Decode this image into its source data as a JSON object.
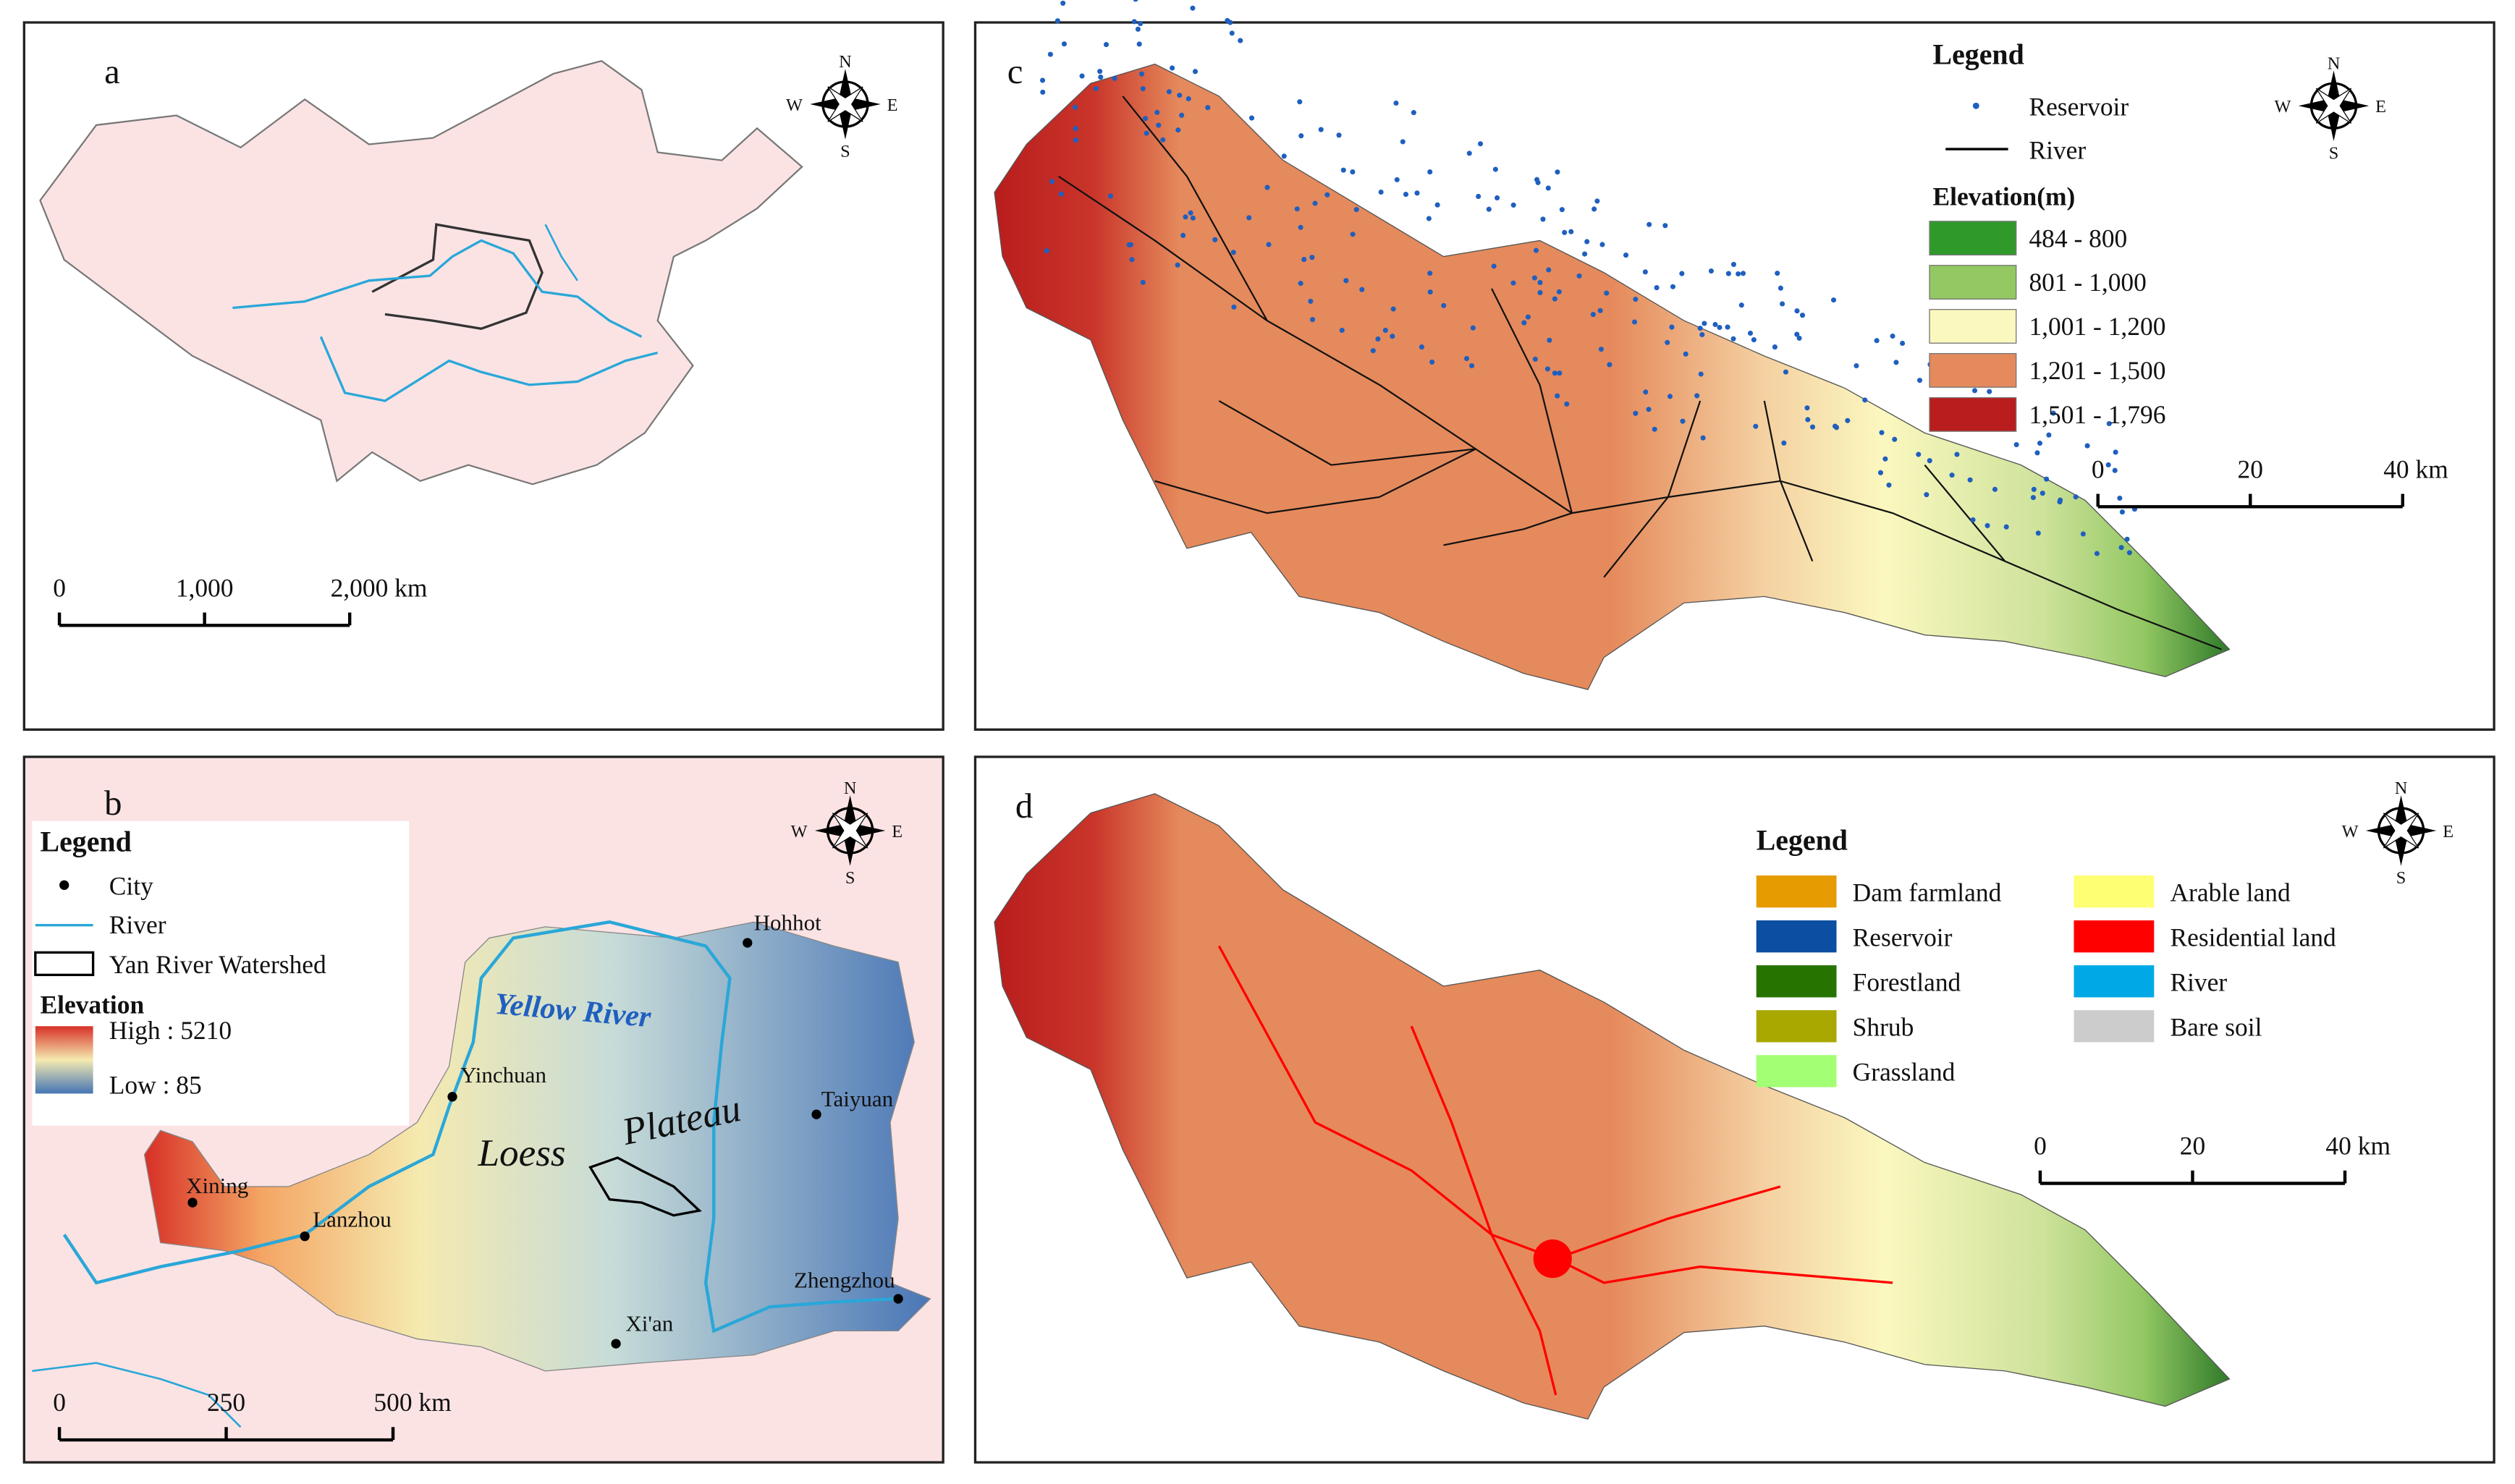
{
  "compass": {
    "n": "N",
    "e": "E",
    "s": "S",
    "w": "W"
  },
  "panel_a": {
    "label": "a",
    "scale_bar": [
      "0",
      "1,000",
      "2,000 km"
    ]
  },
  "panel_b": {
    "label": "b",
    "legend_title": "Legend",
    "legend": [
      {
        "label": "City",
        "color": "#000000"
      },
      {
        "label": "River",
        "color": "#2aa7d8"
      },
      {
        "label": "Yan River Watershed",
        "color": "#000000"
      }
    ],
    "elevation_title": "Elevation",
    "elevation": [
      {
        "label": "High : 5210",
        "color": "#d73027"
      },
      {
        "label": "Low : 85",
        "color": "#4575b4"
      }
    ],
    "places": [
      "Hohhot",
      "Yinchuan",
      "Taiyuan",
      "Xining",
      "Lanzhou",
      "Xi'an",
      "Zhengzhou"
    ],
    "annotations": [
      "Yellow River",
      "Loess",
      "Plateau"
    ],
    "scale_bar": [
      "0",
      "250",
      "500 km"
    ]
  },
  "panel_c": {
    "label": "c",
    "legend_title": "Legend",
    "legend": [
      {
        "label": "Reservoir",
        "color": "#1f5fbf"
      },
      {
        "label": "River",
        "color": "#000000"
      }
    ],
    "elevation_title": "Elevation(m)",
    "elevation": [
      {
        "label": "484 - 800",
        "color": "#2f9a2a"
      },
      {
        "label": "801 - 1,000",
        "color": "#93c863"
      },
      {
        "label": "1,001 - 1,200",
        "color": "#fbf8bf"
      },
      {
        "label": "1,201 - 1,500",
        "color": "#e58a5c"
      },
      {
        "label": "1,501 - 1,796",
        "color": "#b91d1d"
      }
    ],
    "scale_bar": [
      "0",
      "20",
      "40 km"
    ]
  },
  "panel_d": {
    "label": "d",
    "legend_title": "Legend",
    "legend": [
      {
        "label": "Dam farmland",
        "color": "#e69b00"
      },
      {
        "label": "Reservoir",
        "color": "#0b4ea2"
      },
      {
        "label": "Forestland",
        "color": "#267300"
      },
      {
        "label": "Shrub",
        "color": "#a8a800"
      },
      {
        "label": "Grassland",
        "color": "#a3ff73"
      },
      {
        "label": "Arable land",
        "color": "#ffff73"
      },
      {
        "label": "Residential land",
        "color": "#ff0000"
      },
      {
        "label": "River",
        "color": "#00a9e6"
      },
      {
        "label": "Bare soil",
        "color": "#cccccc"
      }
    ],
    "scale_bar": [
      "0",
      "20",
      "40 km"
    ]
  }
}
